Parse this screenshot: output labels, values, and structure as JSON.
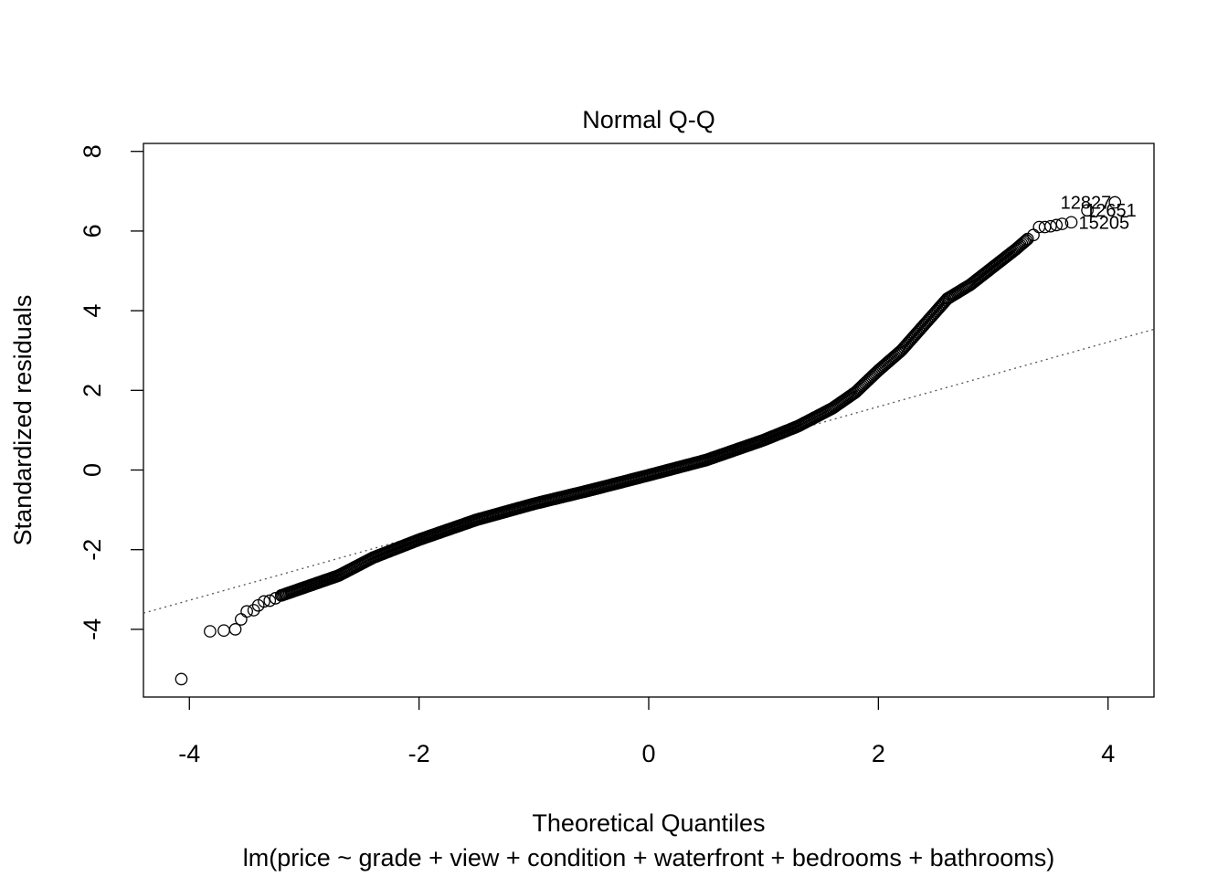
{
  "chart_data": {
    "type": "scatter",
    "title": "Normal Q-Q",
    "xlabel": "Theoretical Quantiles",
    "ylabel": "Standardized residuals",
    "subtitle": "lm(price ~ grade + view + condition + waterfront + bedrooms + bathrooms)",
    "xlim": [
      -4.4,
      4.4
    ],
    "ylim": [
      -5.7,
      8.2
    ],
    "x_ticks": [
      -4,
      -2,
      0,
      2,
      4
    ],
    "y_ticks": [
      -4,
      -2,
      0,
      2,
      4,
      6,
      8
    ],
    "grid": false,
    "reference_line": {
      "intercept": -0.03,
      "slope": 0.81
    },
    "labeled_points": [
      {
        "label": "12827",
        "x": 4.06,
        "y": 6.72
      },
      {
        "label": "12651",
        "x": 3.82,
        "y": 6.52
      },
      {
        "label": "15205",
        "x": 3.68,
        "y": 6.22
      }
    ],
    "sample_points": [
      {
        "x": -4.07,
        "y": -5.25
      },
      {
        "x": -3.82,
        "y": -4.05
      },
      {
        "x": -3.7,
        "y": -4.03
      },
      {
        "x": -3.6,
        "y": -4.0
      },
      {
        "x": -3.55,
        "y": -3.75
      },
      {
        "x": -3.5,
        "y": -3.55
      },
      {
        "x": -3.44,
        "y": -3.52
      },
      {
        "x": -3.4,
        "y": -3.4
      },
      {
        "x": -3.35,
        "y": -3.3
      },
      {
        "x": -3.3,
        "y": -3.28
      },
      {
        "x": -3.25,
        "y": -3.22
      },
      {
        "x": -3.2,
        "y": -3.15
      },
      {
        "x": 3.3,
        "y": 5.8
      },
      {
        "x": 3.35,
        "y": 5.9
      },
      {
        "x": 3.4,
        "y": 6.1
      },
      {
        "x": 3.45,
        "y": 6.1
      },
      {
        "x": 3.5,
        "y": 6.12
      },
      {
        "x": 3.55,
        "y": 6.15
      },
      {
        "x": 3.6,
        "y": 6.18
      }
    ],
    "curve_knots": [
      [
        -3.2,
        -3.15
      ],
      [
        -3.0,
        -2.95
      ],
      [
        -2.7,
        -2.65
      ],
      [
        -2.4,
        -2.2
      ],
      [
        -2.0,
        -1.75
      ],
      [
        -1.5,
        -1.25
      ],
      [
        -1.0,
        -0.85
      ],
      [
        -0.5,
        -0.5
      ],
      [
        0.0,
        -0.13
      ],
      [
        0.5,
        0.25
      ],
      [
        1.0,
        0.75
      ],
      [
        1.3,
        1.1
      ],
      [
        1.6,
        1.55
      ],
      [
        1.8,
        1.95
      ],
      [
        2.0,
        2.5
      ],
      [
        2.2,
        3.0
      ],
      [
        2.4,
        3.65
      ],
      [
        2.6,
        4.3
      ],
      [
        2.8,
        4.65
      ],
      [
        3.0,
        5.1
      ],
      [
        3.2,
        5.55
      ],
      [
        3.3,
        5.8
      ]
    ]
  }
}
